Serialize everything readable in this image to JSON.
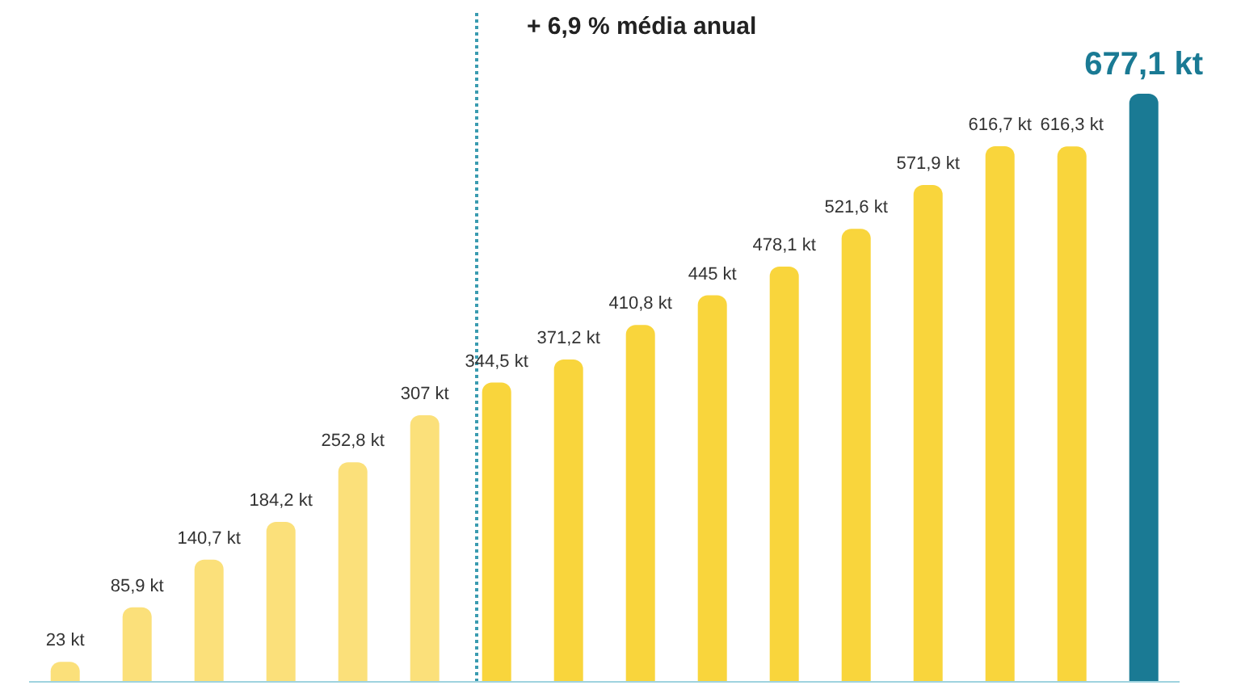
{
  "chart_data": {
    "type": "bar",
    "annotations": [
      "+ 6,9 % média anual"
    ],
    "categories": [
      null,
      null,
      null,
      null,
      null,
      null,
      null,
      null,
      null,
      null,
      null,
      null,
      null,
      null,
      null,
      null
    ],
    "values": [
      23,
      85.9,
      140.7,
      184.2,
      252.8,
      307,
      344.5,
      371.2,
      410.8,
      445,
      478.1,
      521.6,
      571.9,
      616.7,
      616.3,
      677.1
    ],
    "colors": [
      "#fbe07a",
      "#fbe07a",
      "#fbe07a",
      "#fbe07a",
      "#fbe07a",
      "#fbe07a",
      "#f9d53c",
      "#f9d53c",
      "#f9d53c",
      "#f9d53c",
      "#f9d53c",
      "#f9d53c",
      "#f9d53c",
      "#f9d53c",
      "#f9d53c",
      "#1a7a94"
    ],
    "value_labels": [
      "23 kt",
      "85,9 kt",
      "140,7 kt",
      "184,2 kt",
      "252,8 kt",
      "307 kt",
      "344,5 kt",
      "371,2 kt",
      "410,8 kt",
      "445 kt",
      "478,1 kt",
      "521,6 kt",
      "571,9 kt",
      "616,7 kt",
      "616,3 kt",
      "677,1 kt"
    ],
    "grid": false,
    "legend": false
  }
}
